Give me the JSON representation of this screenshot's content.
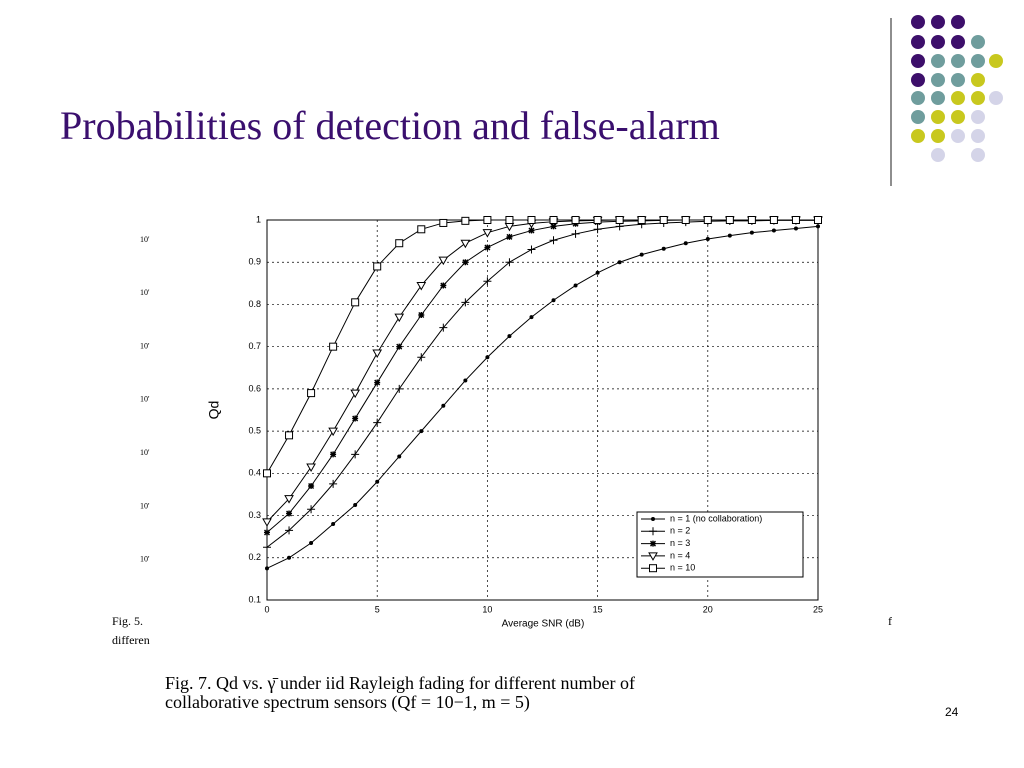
{
  "slide": {
    "title": "Probabilities of detection and false-alarm",
    "page_number": "24",
    "caption_lines": [
      "Fig. 7.     Qd  vs.  γ̄  under iid Rayleigh fading for different number of",
      "collaborative spectrum sensors (Qf = 10−1, m = 5)"
    ],
    "background_fragments": {
      "left_axis_labels": [
        "10'",
        "10'",
        "10'",
        "10'",
        "10'",
        "10'",
        "10'"
      ],
      "fig_label": "Fig. 5.",
      "fig_text": "differen",
      "right_text": "f"
    }
  },
  "chart_data": {
    "type": "line",
    "x_label": "Average SNR (dB)",
    "y_label": "Qd",
    "x": [
      0,
      1,
      2,
      3,
      4,
      5,
      6,
      7,
      8,
      9,
      10,
      11,
      12,
      13,
      14,
      15,
      16,
      17,
      18,
      19,
      20,
      21,
      22,
      23,
      24,
      25
    ],
    "series": [
      {
        "name": "n = 1 (no collaboration)",
        "color": "#000000",
        "marker": "dot",
        "values": [
          0.175,
          0.2,
          0.235,
          0.28,
          0.325,
          0.38,
          0.44,
          0.5,
          0.56,
          0.62,
          0.675,
          0.725,
          0.77,
          0.81,
          0.845,
          0.875,
          0.9,
          0.918,
          0.932,
          0.945,
          0.955,
          0.963,
          0.97,
          0.975,
          0.98,
          0.985
        ]
      },
      {
        "name": "n = 2",
        "color": "#000000",
        "marker": "plus",
        "values": [
          0.225,
          0.265,
          0.315,
          0.375,
          0.445,
          0.52,
          0.6,
          0.675,
          0.745,
          0.805,
          0.855,
          0.9,
          0.93,
          0.952,
          0.967,
          0.978,
          0.985,
          0.99,
          0.993,
          0.995,
          0.997,
          0.998,
          0.998,
          0.999,
          0.999,
          0.999
        ]
      },
      {
        "name": "n = 3",
        "color": "#000000",
        "marker": "star",
        "values": [
          0.26,
          0.305,
          0.37,
          0.445,
          0.53,
          0.615,
          0.7,
          0.775,
          0.845,
          0.9,
          0.935,
          0.96,
          0.975,
          0.985,
          0.991,
          0.995,
          0.997,
          0.998,
          0.999,
          1,
          1,
          1,
          1,
          1,
          1,
          1
        ]
      },
      {
        "name": "n = 4",
        "color": "#000000",
        "marker": "triangle-down",
        "values": [
          0.285,
          0.34,
          0.415,
          0.5,
          0.59,
          0.685,
          0.77,
          0.845,
          0.905,
          0.945,
          0.97,
          0.985,
          0.992,
          0.996,
          0.998,
          0.999,
          1,
          1,
          1,
          1,
          1,
          1,
          1,
          1,
          1,
          1
        ]
      },
      {
        "name": "n = 10",
        "color": "#000000",
        "marker": "square",
        "values": [
          0.4,
          0.49,
          0.59,
          0.7,
          0.805,
          0.89,
          0.945,
          0.978,
          0.993,
          0.998,
          1,
          1,
          1,
          1,
          1,
          1,
          1,
          1,
          1,
          1,
          1,
          1,
          1,
          1,
          1,
          1
        ]
      }
    ],
    "xlim": [
      0,
      25
    ],
    "xticks": [
      0,
      5,
      10,
      15,
      20,
      25
    ],
    "ylim": [
      0.1,
      1
    ],
    "yticks": [
      0.1,
      0.2,
      0.3,
      0.4,
      0.5,
      0.6,
      0.7,
      0.8,
      0.9,
      1
    ],
    "grid": true,
    "legend": "lower-right"
  }
}
